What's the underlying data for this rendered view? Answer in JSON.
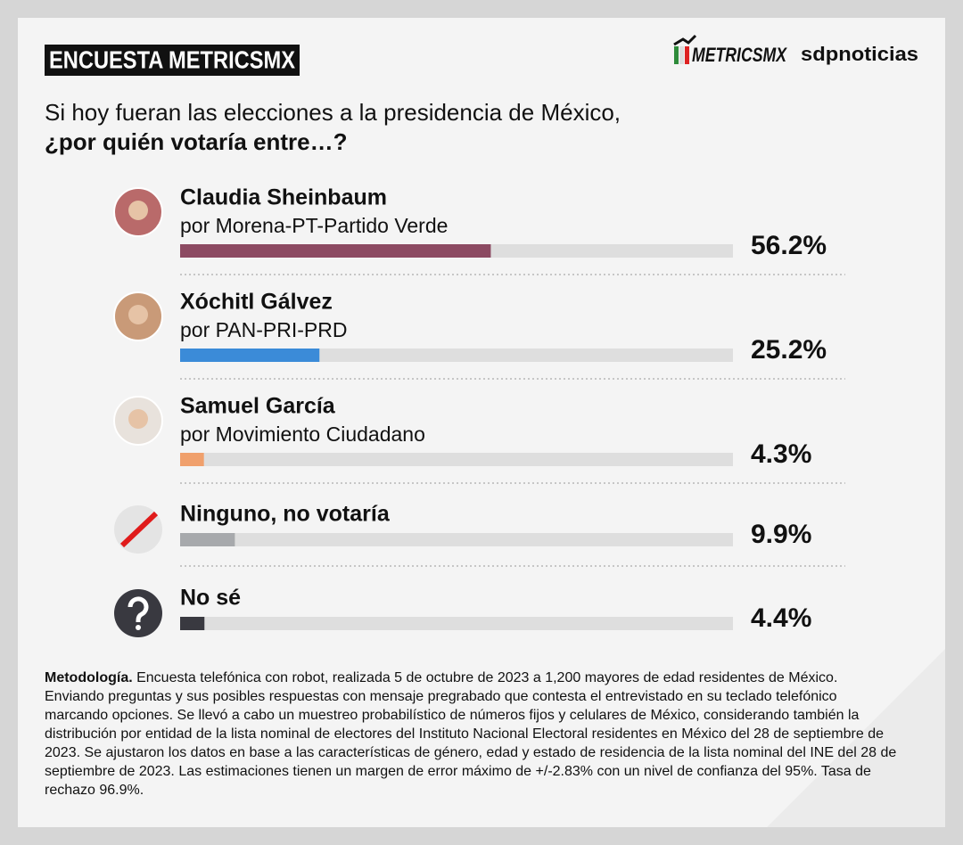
{
  "chart_data": {
    "type": "bar",
    "header": "ENCUESTA METRICSMX",
    "logos": [
      "METRICSMX",
      "sdpnoticias"
    ],
    "title": "Si hoy fueran las elecciones a la presidencia de México,",
    "subtitle": "¿por quién votaría entre…?",
    "categories": [
      "Claudia Sheinbaum",
      "Xóchitl Gálvez",
      "Samuel García",
      "Ninguno, no votaría",
      "No sé"
    ],
    "party": [
      "por Morena-PT-Partido Verde",
      "por PAN-PRI-PRD",
      "por Movimiento Ciudadano",
      null,
      null
    ],
    "values": [
      56.2,
      25.2,
      4.3,
      9.9,
      4.4
    ],
    "value_labels": [
      "56.2%",
      "25.2%",
      "4.3%",
      "9.9%",
      "4.4%"
    ],
    "colors": [
      "#8c4a62",
      "#3b8bd8",
      "#f0a06c",
      "#a7a9ac",
      "#393940"
    ],
    "xlim": [
      0,
      100
    ],
    "methodology": {
      "label": "Metodología.",
      "text": "Encuesta telefónica con robot, realizada 5 de octubre de 2023 a 1,200 mayores de edad residentes de México. Enviando preguntas y sus posibles respuestas con mensaje pregrabado que contesta el entrevistado en su teclado telefónico marcando opciones. Se llevó a cabo un muestreo probabilístico de números fijos y celulares de México, considerando también la distribución por entidad de la lista nominal de electores del Instituto Nacional Electoral residentes en México del 28 de septiembre de 2023. Se ajustaron los datos en base a las características de género, edad y estado de residencia de la lista nominal del INE del 28 de septiembre de 2023. Las estimaciones tienen un margen de error máximo de +/-2.83% con un nivel de confianza del 95%. Tasa de rechazo 96.9%."
    }
  }
}
